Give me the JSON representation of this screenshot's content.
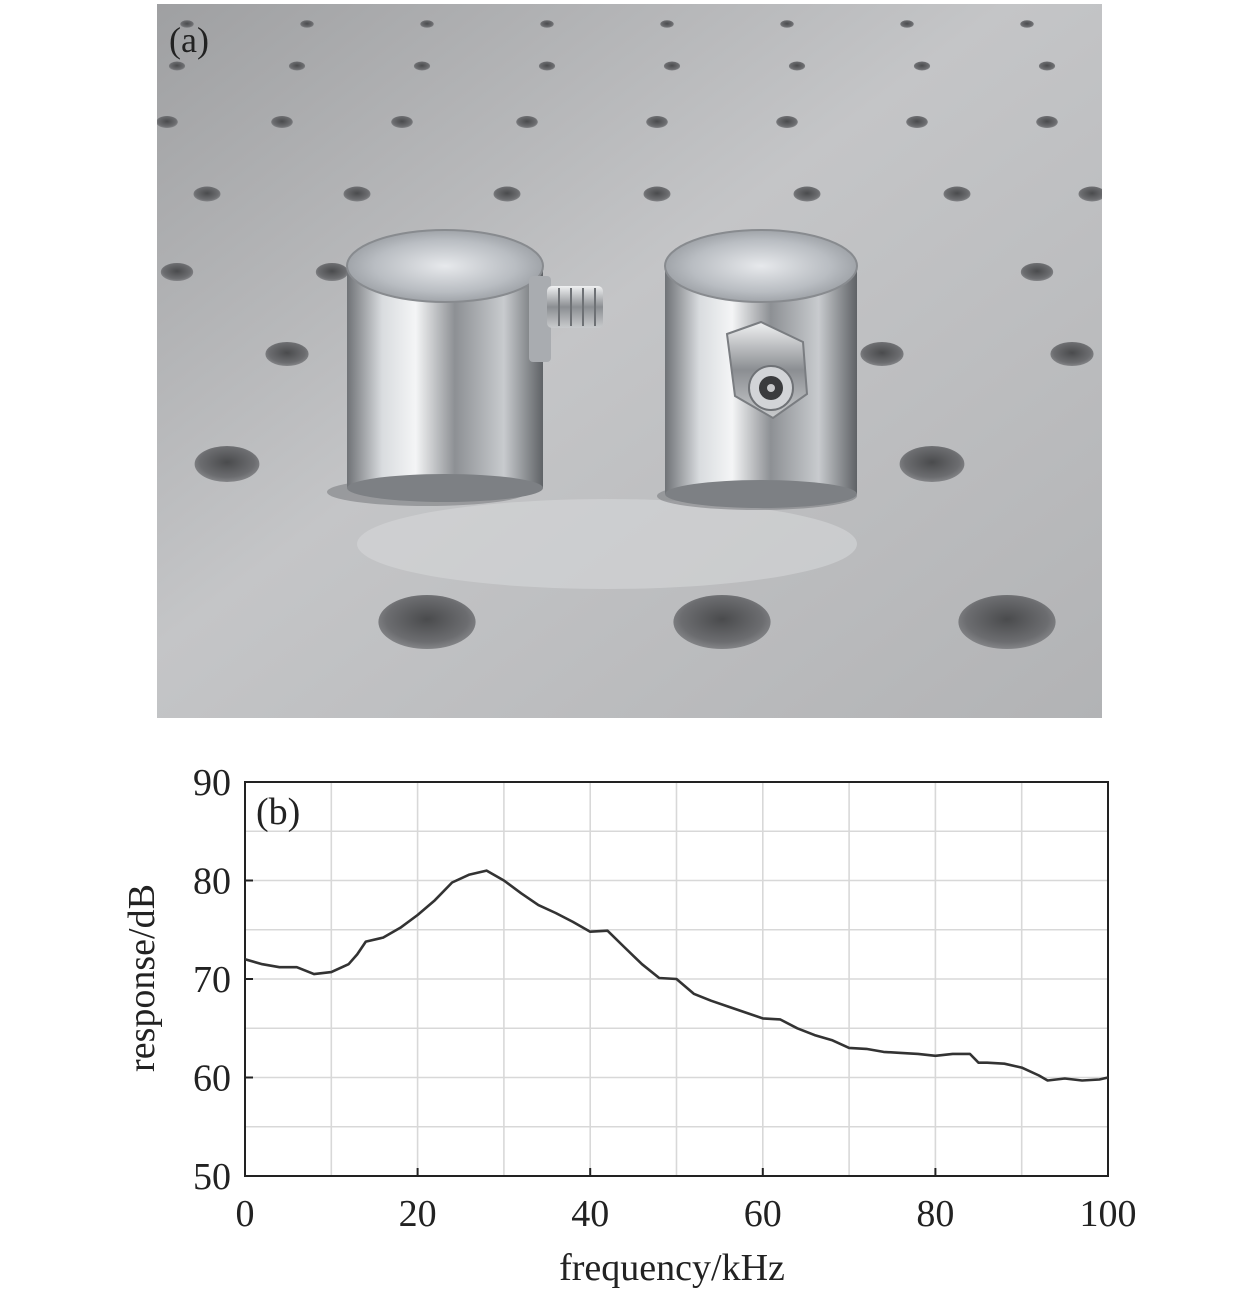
{
  "panel_a": {
    "label": "(a)"
  },
  "panel_b": {
    "label": "(b)"
  },
  "colors": {
    "line": "#333333",
    "grid": "#d8d8d8",
    "axis": "#222222",
    "table_surface": "#b7b7b7",
    "metal": "#c9ccd0"
  },
  "chart_data": {
    "type": "line",
    "xlabel": "frequency/kHz",
    "ylabel": "response/dB",
    "xlim": [
      0,
      100
    ],
    "ylim": [
      50,
      90
    ],
    "xticks": [
      0,
      20,
      40,
      60,
      80,
      100
    ],
    "yticks": [
      50,
      60,
      70,
      80,
      90
    ],
    "grid": true,
    "series": [
      {
        "x": [
          0,
          2,
          4,
          6,
          8,
          10,
          12,
          13,
          14,
          16,
          18,
          20,
          22,
          24,
          26,
          28,
          30,
          32,
          34,
          36,
          38,
          40,
          42,
          44,
          46,
          48,
          50,
          52,
          54,
          56,
          58,
          60,
          62,
          64,
          66,
          68,
          70,
          72,
          74,
          76,
          78,
          80,
          82,
          84,
          85,
          86,
          88,
          90,
          92,
          93,
          95,
          97,
          99,
          100
        ],
        "y": [
          72,
          71.5,
          71.2,
          71.2,
          70.5,
          70.7,
          71.5,
          72.5,
          73.8,
          74.2,
          75.2,
          76.5,
          78,
          79.8,
          80.6,
          81,
          80,
          78.7,
          77.5,
          76.7,
          75.8,
          74.8,
          74.9,
          73.2,
          71.5,
          70.1,
          70,
          68.5,
          67.8,
          67.2,
          66.6,
          66,
          65.9,
          65,
          64.3,
          63.8,
          63,
          62.9,
          62.6,
          62.5,
          62.4,
          62.2,
          62.4,
          62.4,
          61.5,
          61.5,
          61.4,
          61,
          60.2,
          59.7,
          59.9,
          59.7,
          59.8,
          60
        ]
      }
    ]
  }
}
